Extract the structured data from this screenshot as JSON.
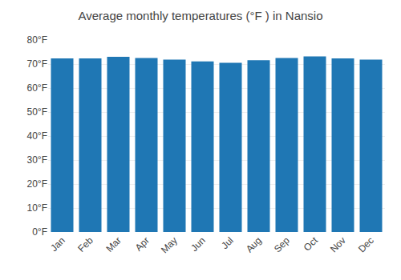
{
  "chart_data": {
    "type": "bar",
    "title": "Average monthly temperatures (°F ) in Nansio",
    "categories": [
      "Jan",
      "Feb",
      "Mar",
      "Apr",
      "May",
      "Jun",
      "Jul",
      "Aug",
      "Sep",
      "Oct",
      "Nov",
      "Dec"
    ],
    "values": [
      72.3,
      72.3,
      73.0,
      72.5,
      71.8,
      71.1,
      70.5,
      71.6,
      72.5,
      73.2,
      72.3,
      71.8
    ],
    "ylim": [
      0,
      80
    ],
    "yticks": [
      {
        "value": 0,
        "label": "0°F"
      },
      {
        "value": 10,
        "label": "10°F"
      },
      {
        "value": 20,
        "label": "20°F"
      },
      {
        "value": 30,
        "label": "30°F"
      },
      {
        "value": 40,
        "label": "40°F"
      },
      {
        "value": 50,
        "label": "50°F"
      },
      {
        "value": 60,
        "label": "60°F"
      },
      {
        "value": 70,
        "label": "70°F"
      },
      {
        "value": 80,
        "label": "80°F"
      }
    ],
    "grid": true
  }
}
